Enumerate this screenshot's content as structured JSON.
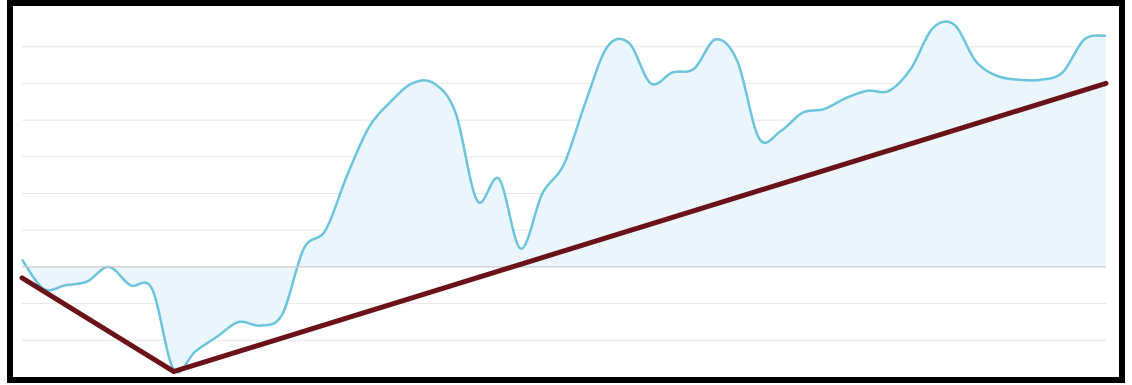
{
  "chart_data": {
    "type": "area",
    "title": "",
    "xlabel": "",
    "ylabel": "",
    "grid": true,
    "baseline": 0,
    "ylim": [
      -3,
      7
    ],
    "x": [
      0,
      2,
      4,
      6,
      8,
      10,
      12,
      14,
      16,
      18,
      20,
      22,
      24,
      26,
      28,
      30,
      32,
      34,
      36,
      38,
      40,
      42,
      44,
      46,
      48,
      50,
      52,
      54,
      56,
      58,
      60,
      62,
      64,
      66,
      68,
      70,
      72,
      74,
      76,
      78,
      80,
      82,
      84,
      86,
      88,
      90,
      92,
      94,
      96,
      98,
      100
    ],
    "series": [
      {
        "values": [
          0.2,
          -0.6,
          -0.5,
          -0.4,
          0.0,
          -0.5,
          -0.6,
          -2.8,
          -2.3,
          -1.9,
          -1.5,
          -1.6,
          -1.3,
          0.5,
          1.0,
          2.5,
          3.8,
          4.5,
          5.0,
          5.0,
          4.2,
          1.8,
          2.4,
          0.5,
          2.0,
          2.8,
          4.5,
          6.0,
          6.1,
          5.0,
          5.3,
          5.4,
          6.2,
          5.6,
          3.5,
          3.7,
          4.2,
          4.3,
          4.6,
          4.8,
          4.8,
          5.4,
          6.5,
          6.6,
          5.6,
          5.2,
          5.1,
          5.1,
          5.3,
          6.2,
          6.3
        ],
        "color": "#6cc4de",
        "fill": "#eaf6fb"
      }
    ],
    "trend_lines": [
      {
        "points": [
          [
            0,
            -0.3
          ],
          [
            14,
            -2.85
          ]
        ],
        "color": "#6b1219"
      },
      {
        "points": [
          [
            14,
            -2.85
          ],
          [
            100,
            5.0
          ]
        ],
        "color": "#6b1219"
      }
    ],
    "gridline_values": [
      -2,
      -1,
      0,
      1,
      2,
      3,
      4,
      5,
      6
    ],
    "colors": {
      "frame": "#000000",
      "grid": "#e6e6e6",
      "baseline": "#cccccc"
    }
  }
}
